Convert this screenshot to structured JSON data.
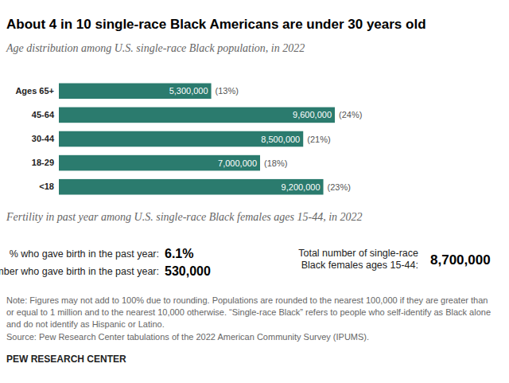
{
  "chart_data": {
    "type": "bar",
    "orientation": "horizontal",
    "title": "About 4 in 10 single-race Black Americans are under 30 years old",
    "subtitle": "Age distribution among U.S. single-race Black population, in 2022",
    "categories": [
      "Ages 65+",
      "45-64",
      "30-44",
      "18-29",
      "<18"
    ],
    "values": [
      5300000,
      9600000,
      8500000,
      7000000,
      9200000
    ],
    "value_labels": [
      "5,300,000",
      "9,600,000",
      "8,500,000",
      "7,000,000",
      "9,200,000"
    ],
    "shares": [
      13,
      24,
      21,
      18,
      23
    ],
    "share_labels": [
      "(13%)",
      "(24%)",
      "(21%)",
      "(18%)",
      "(23%)"
    ],
    "color": "#2b7b6e",
    "xlim": [
      0,
      9600000
    ],
    "data_labels": true,
    "tick_labels": "y",
    "grid": false
  },
  "fertility": {
    "title": "Fertility in past year among U.S. single-race Black females ages 15-44, in 2022",
    "stats": [
      {
        "label": "% who gave birth in the past year:",
        "value": 6.1,
        "value_label": "6.1%"
      },
      {
        "label": "Number who gave birth in the past year:",
        "value": 530000,
        "value_label": "530,000"
      }
    ],
    "total": {
      "label_lines": [
        "Total number of single-race",
        "Black females ages 15-44:"
      ],
      "value": 8700000,
      "value_label": "8,700,000"
    }
  },
  "note_lines": [
    "Note: Figures may not add to 100% due to rounding. Populations are rounded to the nearest 100,000 if they are greater than",
    "or equal to 1 million and to the nearest 10,000 otherwise. “Single-race Black” refers to people who self-identify as Black alone",
    "and do not identify as Hispanic or Latino."
  ],
  "source": "Source: Pew Research Center tabulations of the 2022 American Community Survey (IPUMS).",
  "credit": "PEW RESEARCH CENTER"
}
